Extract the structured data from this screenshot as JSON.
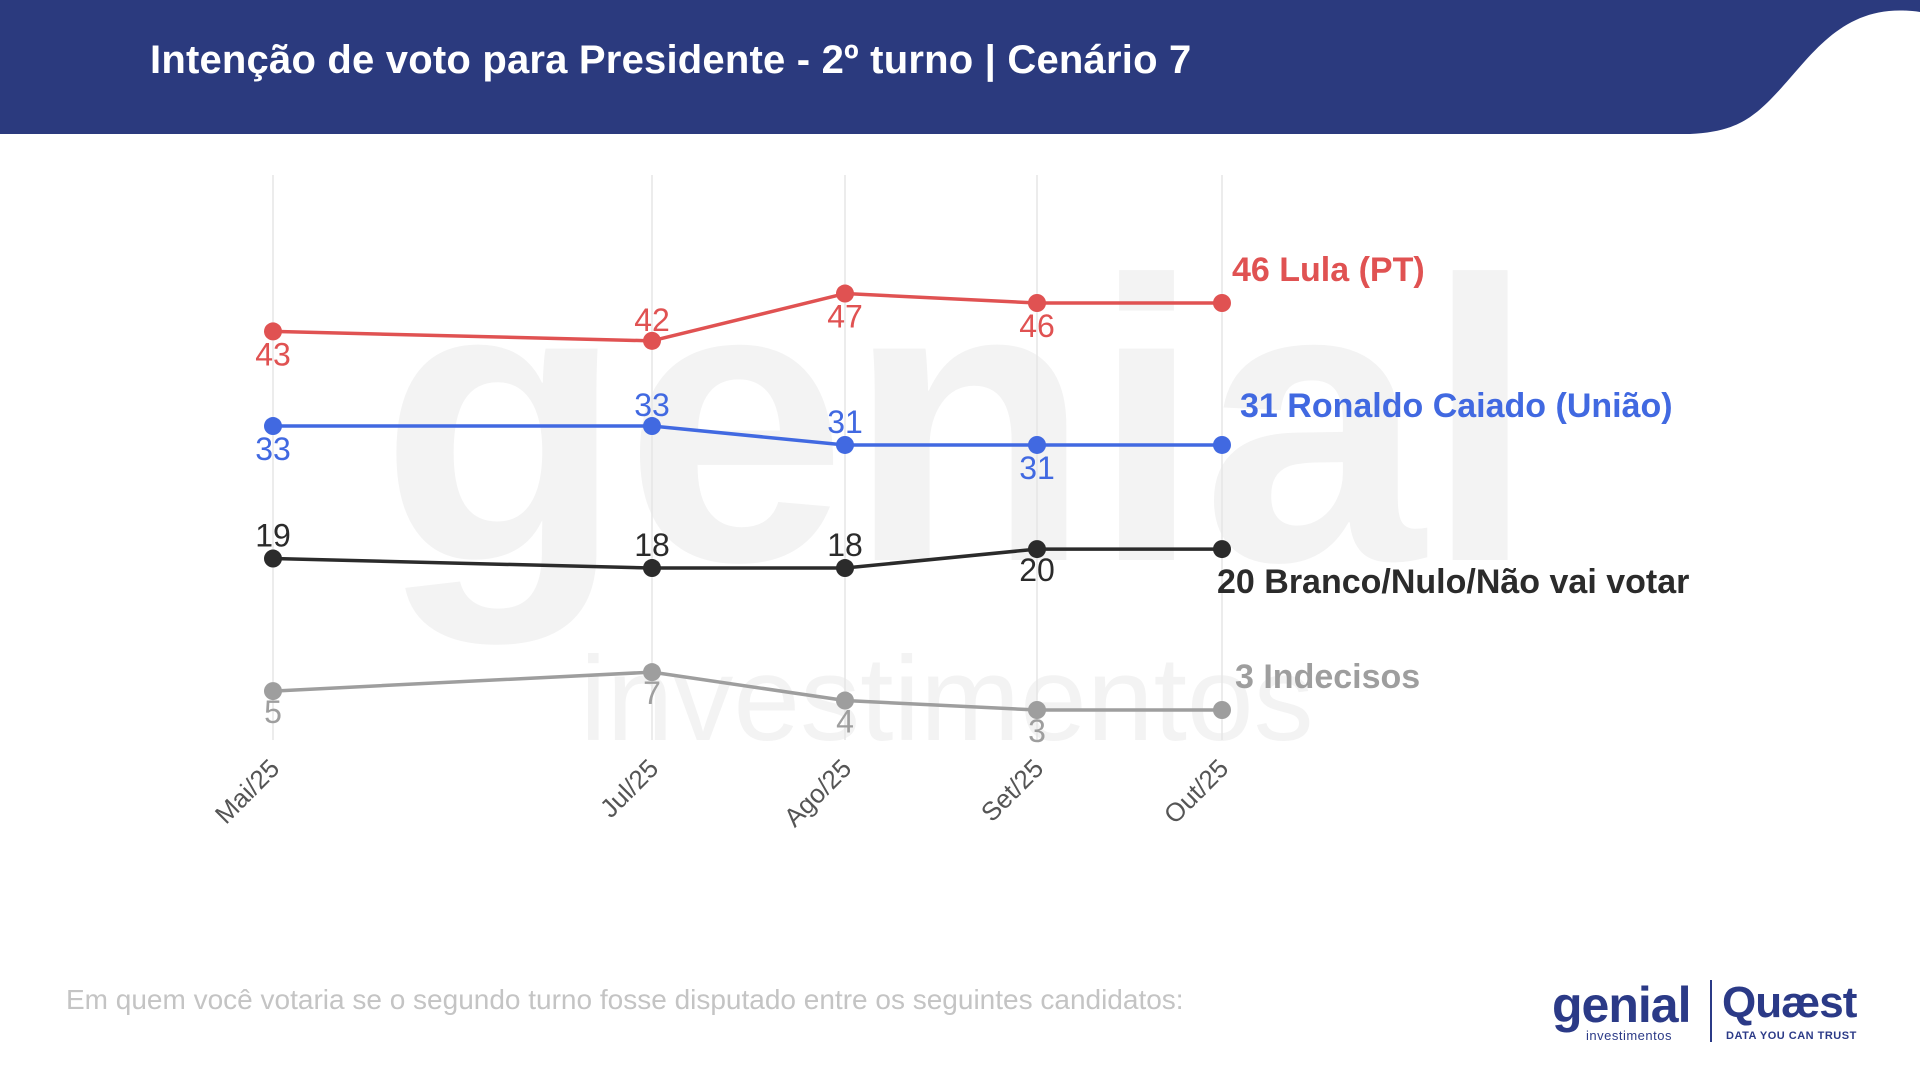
{
  "header": {
    "title": "Intenção de voto para Presidente - 2º turno | Cenário 7",
    "color": "#2b3a7e"
  },
  "chart_data": {
    "type": "line",
    "title": "Intenção de voto para Presidente - 2º turno | Cenário 7",
    "xlabel": "",
    "ylabel": "",
    "categories": [
      "Mai/25",
      "Jul/25",
      "Ago/25",
      "Set/25",
      "Out/25"
    ],
    "ylim": [
      0,
      50
    ],
    "grid": "vertical",
    "series": [
      {
        "name": "Lula (PT)",
        "end_label": "46 Lula (PT)",
        "color": "#e05252",
        "values": [
          43,
          42,
          47,
          46,
          46
        ],
        "labels": [
          "43",
          "42",
          "47",
          "46",
          ""
        ]
      },
      {
        "name": "Ronaldo Caiado (União)",
        "end_label": "31 Ronaldo Caiado (União)",
        "color": "#4169e1",
        "values": [
          33,
          33,
          31,
          31,
          31
        ],
        "labels": [
          "33",
          "33",
          "31",
          "31",
          ""
        ]
      },
      {
        "name": "Branco/Nulo/Não vai votar",
        "end_label": "20 Branco/Nulo/Não vai votar",
        "color": "#2b2b2b",
        "values": [
          19,
          18,
          18,
          20,
          20
        ],
        "labels": [
          "19",
          "18",
          "18",
          "20",
          ""
        ]
      },
      {
        "name": "Indecisos",
        "end_label": "3 Indecisos",
        "color": "#9e9e9e",
        "values": [
          5,
          7,
          4,
          3,
          3
        ],
        "labels": [
          "5",
          "7",
          "4",
          "3",
          ""
        ]
      }
    ]
  },
  "watermark": {
    "main": "genial",
    "sub": "investimentos"
  },
  "footnote": "Em quem você votaria se o segundo turno fosse disputado entre os seguintes candidatos:",
  "logos": {
    "genial": "genial",
    "genial_sub": "investimentos",
    "quaest": "Quæst",
    "quaest_sub": "DATA YOU CAN TRUST"
  }
}
